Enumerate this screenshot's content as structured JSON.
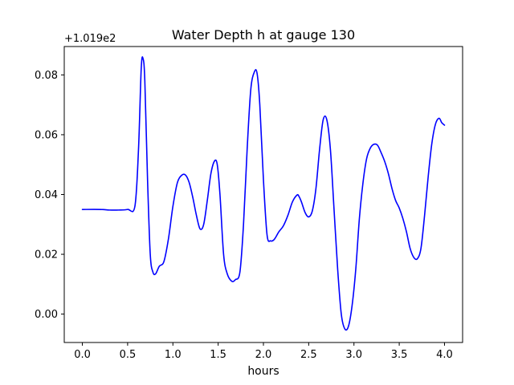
{
  "chart_data": {
    "type": "line",
    "title": "Water Depth h at gauge 130",
    "xlabel": "hours",
    "ylabel": "",
    "y_offset_label": "+1.019e2",
    "xlim": [
      -0.2,
      4.2
    ],
    "ylim": [
      -0.0095,
      0.0895
    ],
    "x_ticks": [
      0.0,
      0.5,
      1.0,
      1.5,
      2.0,
      2.5,
      3.0,
      3.5,
      4.0
    ],
    "x_tick_labels": [
      "0.0",
      "0.5",
      "1.0",
      "1.5",
      "2.0",
      "2.5",
      "3.0",
      "3.5",
      "4.0"
    ],
    "y_ticks": [
      0.0,
      0.02,
      0.04,
      0.06,
      0.08
    ],
    "y_tick_labels": [
      "0.00",
      "0.02",
      "0.04",
      "0.06",
      "0.08"
    ],
    "grid": false,
    "line_color": "#0000ff",
    "series": [
      {
        "name": "",
        "x": [
          0.0,
          0.2,
          0.3,
          0.4,
          0.5,
          0.58,
          0.62,
          0.65,
          0.67,
          0.69,
          0.72,
          0.75,
          0.78,
          0.81,
          0.85,
          0.9,
          0.95,
          1.0,
          1.05,
          1.1,
          1.14,
          1.18,
          1.22,
          1.26,
          1.3,
          1.34,
          1.38,
          1.42,
          1.46,
          1.49,
          1.52,
          1.56,
          1.6,
          1.65,
          1.69,
          1.74,
          1.78,
          1.82,
          1.86,
          1.9,
          1.93,
          1.96,
          2.0,
          2.04,
          2.08,
          2.12,
          2.17,
          2.22,
          2.27,
          2.32,
          2.37,
          2.39,
          2.42,
          2.46,
          2.5,
          2.54,
          2.58,
          2.62,
          2.66,
          2.7,
          2.74,
          2.78,
          2.82,
          2.86,
          2.9,
          2.94,
          2.98,
          3.02,
          3.06,
          3.1,
          3.14,
          3.18,
          3.22,
          3.26,
          3.3,
          3.34,
          3.38,
          3.42,
          3.46,
          3.5,
          3.54,
          3.58,
          3.62,
          3.66,
          3.7,
          3.74,
          3.78,
          3.82,
          3.86,
          3.9,
          3.94,
          3.97,
          4.0
        ],
        "y": [
          0.035,
          0.035,
          0.0348,
          0.0348,
          0.035,
          0.036,
          0.055,
          0.082,
          0.0855,
          0.078,
          0.045,
          0.02,
          0.014,
          0.0135,
          0.016,
          0.0175,
          0.025,
          0.036,
          0.044,
          0.0465,
          0.0465,
          0.044,
          0.039,
          0.033,
          0.0285,
          0.03,
          0.038,
          0.047,
          0.0512,
          0.05,
          0.04,
          0.02,
          0.0135,
          0.011,
          0.0115,
          0.014,
          0.03,
          0.055,
          0.075,
          0.081,
          0.0805,
          0.07,
          0.045,
          0.0265,
          0.0245,
          0.025,
          0.0275,
          0.0295,
          0.033,
          0.0375,
          0.0398,
          0.0395,
          0.0375,
          0.034,
          0.0325,
          0.0345,
          0.042,
          0.055,
          0.065,
          0.065,
          0.055,
          0.035,
          0.015,
          0.0,
          -0.005,
          -0.004,
          0.003,
          0.015,
          0.032,
          0.044,
          0.052,
          0.0555,
          0.0568,
          0.0565,
          0.054,
          0.051,
          0.047,
          0.042,
          0.038,
          0.0355,
          0.032,
          0.0275,
          0.022,
          0.019,
          0.0185,
          0.022,
          0.033,
          0.046,
          0.057,
          0.0635,
          0.0655,
          0.064,
          0.0632
        ]
      }
    ]
  }
}
